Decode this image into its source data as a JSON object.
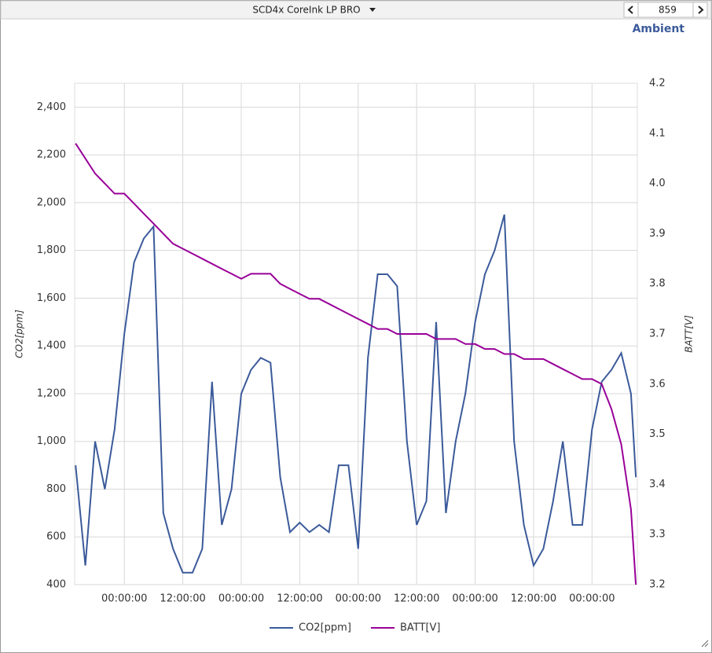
{
  "toolbar": {
    "device": "SCD4x CoreInk LP BRO",
    "page_value": "859",
    "view": "Ambient"
  },
  "chart_data": {
    "type": "line",
    "y_label": "CO2[ppm]",
    "y2_label": "BATT[V]",
    "x": [
      -10,
      -8,
      -6,
      -4,
      -2,
      0,
      2,
      4,
      6,
      8,
      10,
      12,
      14,
      16,
      18,
      20,
      22,
      24,
      26,
      28,
      30,
      32,
      34,
      36,
      38,
      40,
      42,
      44,
      46,
      48,
      50,
      52,
      54,
      56,
      58,
      60,
      62,
      64,
      66,
      68,
      70,
      72,
      74,
      76,
      78,
      80,
      82,
      84,
      86,
      88,
      90,
      92,
      94,
      96,
      98,
      100,
      102,
      104,
      105
    ],
    "xlim": [
      -10.2,
      105.3
    ],
    "xticks": [
      {
        "value": 0,
        "label": "00:00:00"
      },
      {
        "value": 12,
        "label": "12:00:00"
      },
      {
        "value": 24,
        "label": "00:00:00"
      },
      {
        "value": 36,
        "label": "12:00:00"
      },
      {
        "value": 48,
        "label": "00:00:00"
      },
      {
        "value": 60,
        "label": "12:00:00"
      },
      {
        "value": 72,
        "label": "00:00:00"
      },
      {
        "value": 84,
        "label": "12:00:00"
      },
      {
        "value": 96,
        "label": "00:00:00"
      }
    ],
    "ylim": [
      400,
      2500
    ],
    "yticks": [
      400,
      600,
      800,
      {
        "value": 1000,
        "label": "1,000"
      },
      {
        "value": 1200,
        "label": "1,200"
      },
      {
        "value": 1400,
        "label": "1,400"
      },
      {
        "value": 1600,
        "label": "1,600"
      },
      {
        "value": 1800,
        "label": "1,800"
      },
      {
        "value": 2000,
        "label": "2,000"
      },
      {
        "value": 2200,
        "label": "2,200"
      },
      {
        "value": 2400,
        "label": "2,400"
      }
    ],
    "y2lim": [
      3.2,
      4.2
    ],
    "y2ticks": [
      3.2,
      3.3,
      3.4,
      3.5,
      3.6,
      3.7,
      3.8,
      3.9,
      {
        "value": 4,
        "label": "4.0"
      },
      4.1,
      4.2
    ],
    "grid": true,
    "series": [
      {
        "name": "CO2[ppm]",
        "color": "#3b5a9a",
        "values": [
          900,
          480,
          1000,
          800,
          1050,
          1450,
          1750,
          1850,
          1900,
          700,
          550,
          450,
          450,
          550,
          1250,
          650,
          800,
          1200,
          1300,
          1350,
          1330,
          850,
          620,
          660,
          620,
          650,
          620,
          900,
          900,
          550,
          1350,
          1700,
          1700,
          1650,
          1000,
          650,
          750,
          1500,
          700,
          1000,
          1200,
          1500,
          1700,
          1800,
          1950,
          1000,
          650,
          480,
          550,
          750,
          1000,
          650,
          650,
          1050,
          1250,
          1300,
          1370,
          1200,
          850
        ]
      },
      {
        "name": "BATT[V]",
        "color": "#990099",
        "axis": "y2",
        "values": [
          4.08,
          4.05,
          4.02,
          4.0,
          3.98,
          3.98,
          3.96,
          3.94,
          3.92,
          3.9,
          3.88,
          3.87,
          3.86,
          3.85,
          3.84,
          3.83,
          3.82,
          3.81,
          3.82,
          3.82,
          3.82,
          3.8,
          3.79,
          3.78,
          3.77,
          3.77,
          3.76,
          3.75,
          3.74,
          3.73,
          3.72,
          3.71,
          3.71,
          3.7,
          3.7,
          3.7,
          3.7,
          3.69,
          3.69,
          3.69,
          3.68,
          3.68,
          3.67,
          3.67,
          3.66,
          3.66,
          3.65,
          3.65,
          3.65,
          3.64,
          3.63,
          3.62,
          3.61,
          3.61,
          3.6,
          3.55,
          3.48,
          3.35,
          3.2
        ]
      }
    ]
  }
}
